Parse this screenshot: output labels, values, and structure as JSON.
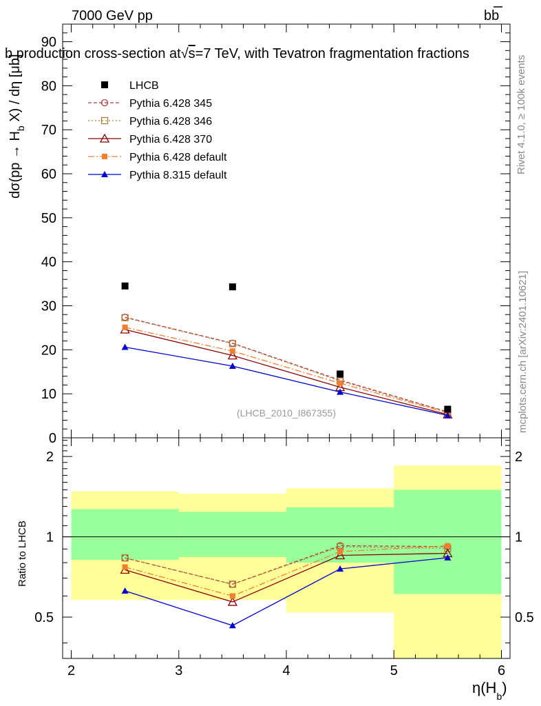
{
  "header": {
    "left": "7000 GeV pp",
    "right_prefix": "b",
    "right_bar": "b"
  },
  "chart_data": {
    "type": "line",
    "title": "b production cross-section at √s=7 TeV, with Tevatron fragmentation fractions",
    "title_parts": {
      "pre": "b production cross-section at",
      "sqrt": "√",
      "s": "s",
      "post": "=7 TeV, with Tevatron fragmentation fractions"
    },
    "ylabel": {
      "pre": "dσ(pp  →  H",
      "sub": "b",
      "post": " X) / dη [μb]"
    },
    "xlabel": {
      "main": "η(H",
      "sub": "b",
      "close": ")"
    },
    "ratio_ylabel": "Ratio to LHCB",
    "analysis_tag": "(LHCB_2010_I867355)",
    "side_text_1": "Rivet 4.1.0, ≥ 100k events",
    "side_text_2": "mcplots.cern.ch [arXiv:2401.10621]",
    "xlim": [
      1.92,
      6.08
    ],
    "ylim": [
      0,
      94
    ],
    "ratio_ylim": [
      0.35,
      2.35
    ],
    "x_ticks": [
      2,
      3,
      4,
      5,
      6
    ],
    "y_ticks": [
      0,
      10,
      20,
      30,
      40,
      50,
      60,
      70,
      80,
      90
    ],
    "ratio_ticks": [
      0.5,
      1,
      2
    ],
    "x": [
      2.5,
      3.5,
      4.5,
      5.5
    ],
    "bin_edges": [
      2,
      3,
      4,
      5,
      6
    ],
    "data": {
      "name": "LHCB",
      "values": [
        34.5,
        34.3,
        14.5,
        6.5
      ],
      "color": "#000000"
    },
    "series": [
      {
        "name": "Pythia 6.428 345",
        "values": [
          27.4,
          21.5,
          13.1,
          5.9
        ],
        "ratio": [
          0.833,
          0.664,
          0.926,
          0.919
        ],
        "color": "#b43a3a",
        "dash": "5,3",
        "marker": "circle"
      },
      {
        "name": "Pythia 6.428 346",
        "values": [
          27.3,
          21.4,
          12.9,
          5.8
        ],
        "ratio": [
          0.833,
          0.664,
          0.917,
          0.905
        ],
        "color": "#a67c3c",
        "dash": "2,3",
        "marker": "square-open"
      },
      {
        "name": "Pythia 6.428 370",
        "values": [
          24.6,
          18.7,
          11.5,
          5.3
        ],
        "ratio": [
          0.752,
          0.57,
          0.852,
          0.867
        ],
        "color": "#8b0000",
        "dash": "",
        "marker": "triangle-open"
      },
      {
        "name": "Pythia 6.428 default",
        "values": [
          25.1,
          19.7,
          12.4,
          5.7
        ],
        "ratio": [
          0.77,
          0.6,
          0.88,
          0.925
        ],
        "color": "#f08030",
        "dash": "9,3,2,3",
        "marker": "square-filled"
      },
      {
        "name": "Pythia 8.315 default",
        "values": [
          20.6,
          16.3,
          10.4,
          5.1
        ],
        "ratio": [
          0.627,
          0.465,
          0.758,
          0.835
        ],
        "color": "#0000d0",
        "dash": "",
        "marker": "triangle-filled"
      }
    ],
    "ratio_bands": {
      "yellow": [
        [
          0.58,
          1.48
        ],
        [
          0.58,
          1.45
        ],
        [
          0.52,
          1.52
        ],
        [
          0.35,
          1.85
        ]
      ],
      "green": [
        [
          0.82,
          1.27
        ],
        [
          0.84,
          1.24
        ],
        [
          0.8,
          1.29
        ],
        [
          0.61,
          1.5
        ]
      ],
      "yellow_color": "#ffff99",
      "green_color": "#99ff99"
    }
  }
}
